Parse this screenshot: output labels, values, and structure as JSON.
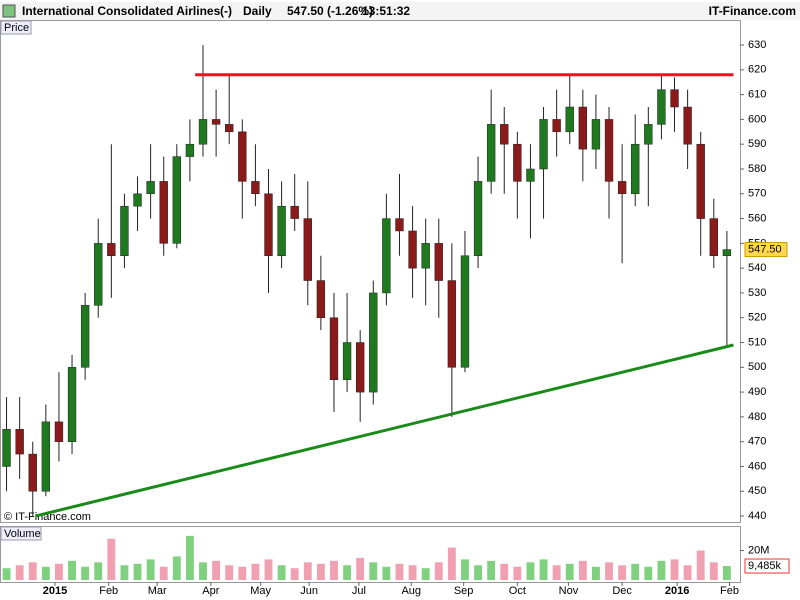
{
  "header": {
    "title": "International Consolidated Airlines",
    "code": "(-)",
    "period": "Daily",
    "quote": "547.50 (-1.26%)",
    "time": "13:51:32",
    "site": "IT-Finance.com"
  },
  "chart_data": {
    "type": "candlestick",
    "price_label": "Price",
    "volume_label": "Volume",
    "watermark": "© IT-Finance.com",
    "x": [
      0,
      1,
      2,
      3,
      4,
      5,
      6,
      7,
      8,
      9,
      10,
      11,
      12,
      13,
      14,
      15,
      16,
      17,
      18,
      19,
      20,
      21,
      22,
      23,
      24,
      25,
      26,
      27,
      28,
      29,
      30,
      31,
      32,
      33,
      34,
      35,
      36,
      37,
      38,
      39,
      40,
      41,
      42,
      43,
      44,
      45,
      46,
      47,
      48,
      49,
      50,
      51,
      52,
      53,
      54,
      55
    ],
    "open": [
      460,
      475,
      465,
      450,
      478,
      470,
      500,
      525,
      550,
      545,
      565,
      570,
      575,
      550,
      585,
      590,
      600,
      598,
      595,
      575,
      570,
      545,
      565,
      560,
      535,
      520,
      495,
      510,
      490,
      530,
      560,
      555,
      540,
      550,
      535,
      500,
      545,
      575,
      598,
      590,
      575,
      580,
      600,
      595,
      605,
      588,
      600,
      575,
      570,
      590,
      598,
      612,
      605,
      590,
      560,
      545
    ],
    "high": [
      488,
      488,
      470,
      485,
      498,
      505,
      530,
      560,
      590,
      570,
      577,
      590,
      585,
      590,
      600,
      630,
      612,
      618,
      600,
      590,
      580,
      575,
      578,
      575,
      545,
      530,
      530,
      515,
      535,
      570,
      578,
      565,
      560,
      560,
      550,
      555,
      585,
      612,
      605,
      595,
      590,
      605,
      612,
      618,
      612,
      610,
      605,
      590,
      602,
      605,
      618,
      617,
      612,
      595,
      568,
      555
    ],
    "low": [
      450,
      455,
      440,
      448,
      462,
      465,
      495,
      520,
      528,
      540,
      555,
      560,
      545,
      548,
      575,
      585,
      585,
      590,
      560,
      565,
      530,
      540,
      555,
      525,
      515,
      482,
      490,
      478,
      485,
      525,
      545,
      528,
      525,
      520,
      480,
      498,
      540,
      570,
      570,
      560,
      552,
      560,
      585,
      590,
      575,
      580,
      560,
      542,
      565,
      565,
      592,
      595,
      580,
      545,
      540,
      508
    ],
    "close": [
      475,
      465,
      450,
      478,
      470,
      500,
      525,
      550,
      545,
      565,
      570,
      575,
      550,
      585,
      590,
      600,
      598,
      595,
      575,
      570,
      545,
      565,
      560,
      535,
      520,
      495,
      510,
      490,
      530,
      560,
      555,
      540,
      550,
      535,
      500,
      545,
      575,
      598,
      590,
      575,
      580,
      600,
      595,
      605,
      588,
      600,
      575,
      570,
      590,
      598,
      612,
      605,
      590,
      560,
      545,
      547.5
    ],
    "volume": [
      8,
      10,
      12,
      9,
      11,
      13,
      9,
      12,
      28,
      10,
      11,
      14,
      9,
      16,
      30,
      12,
      13,
      10,
      9,
      11,
      14,
      10,
      8,
      12,
      11,
      13,
      10,
      15,
      12,
      9,
      11,
      10,
      8,
      12,
      22,
      14,
      10,
      13,
      11,
      9,
      12,
      14,
      10,
      11,
      13,
      9,
      12,
      10,
      11,
      9,
      13,
      14,
      10,
      20,
      12,
      9.485
    ],
    "up_color": "#1f7a1f",
    "down_color": "#8b1a1a",
    "vol_up_color": "#7fd07f",
    "vol_down_color": "#f0a0b0",
    "xlim": [
      -0.5,
      56
    ],
    "xticks": [
      {
        "value": 3.7,
        "label": "2015"
      },
      {
        "value": 7.8,
        "label": "Feb"
      },
      {
        "value": 11.5,
        "label": "Mar"
      },
      {
        "value": 15.6,
        "label": "Apr"
      },
      {
        "value": 19.4,
        "label": "May"
      },
      {
        "value": 23.1,
        "label": "Jun"
      },
      {
        "value": 26.9,
        "label": "Jul"
      },
      {
        "value": 30.9,
        "label": "Aug"
      },
      {
        "value": 34.9,
        "label": "Sep"
      },
      {
        "value": 39.0,
        "label": "Oct"
      },
      {
        "value": 42.9,
        "label": "Nov"
      },
      {
        "value": 47.0,
        "label": "Dec"
      },
      {
        "value": 51.2,
        "label": "2016"
      },
      {
        "value": 55.2,
        "label": "Feb"
      }
    ],
    "ylim": [
      437.6,
      640.1
    ],
    "yticks": [
      440,
      450,
      460,
      470,
      480,
      490,
      500,
      510,
      520,
      530,
      540,
      550,
      560,
      570,
      580,
      590,
      600,
      610,
      620,
      630
    ],
    "vol_ylim": [
      0,
      36
    ],
    "vol_yticks": [
      {
        "value": 20,
        "label": "20M"
      }
    ],
    "last_price": {
      "value": 547.5,
      "label": "547.50"
    },
    "last_volume": {
      "value": 9.485,
      "label": "9,485k"
    },
    "lines": [
      {
        "x": [
          14.4,
          55.5
        ],
        "y": [
          618,
          618
        ],
        "color": "#e8141e"
      },
      {
        "x": [
          2.2,
          55.5
        ],
        "y": [
          440,
          509
        ],
        "color": "#1a8a1a"
      }
    ]
  }
}
